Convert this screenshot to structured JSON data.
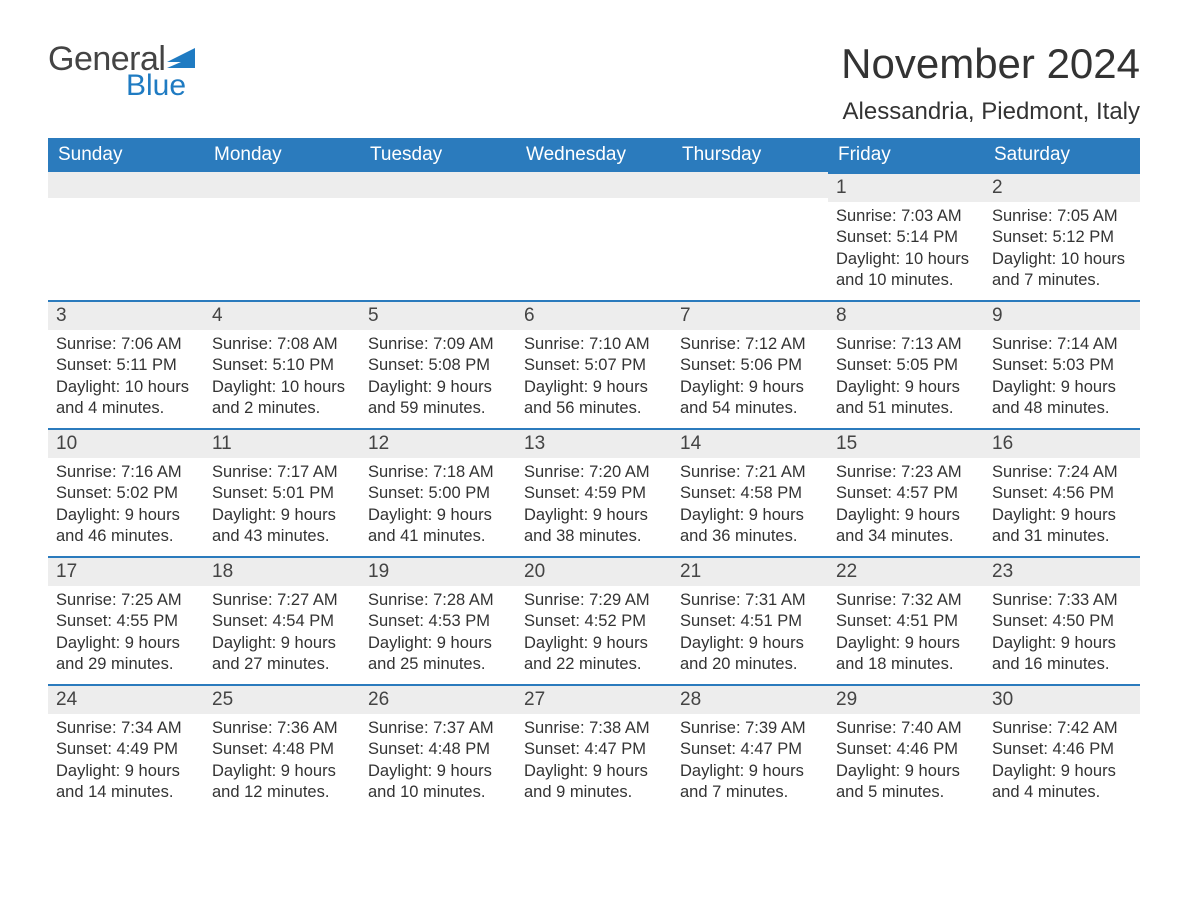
{
  "logo": {
    "general": "General",
    "blue": "Blue"
  },
  "title": "November 2024",
  "location": "Alessandria, Piedmont, Italy",
  "colors": {
    "header_bg": "#2b7bbd",
    "header_text": "#ffffff",
    "day_bar_bg": "#ededed",
    "day_bar_border": "#2b7bbd",
    "text": "#333333",
    "logo_gray": "#444444",
    "logo_blue": "#1f7bc2",
    "background": "#ffffff"
  },
  "weekdays": [
    "Sunday",
    "Monday",
    "Tuesday",
    "Wednesday",
    "Thursday",
    "Friday",
    "Saturday"
  ],
  "rows": [
    [
      null,
      null,
      null,
      null,
      null,
      {
        "n": "1",
        "sr": "Sunrise: 7:03 AM",
        "ss": "Sunset: 5:14 PM",
        "dl": "Daylight: 10 hours and 10 minutes."
      },
      {
        "n": "2",
        "sr": "Sunrise: 7:05 AM",
        "ss": "Sunset: 5:12 PM",
        "dl": "Daylight: 10 hours and 7 minutes."
      }
    ],
    [
      {
        "n": "3",
        "sr": "Sunrise: 7:06 AM",
        "ss": "Sunset: 5:11 PM",
        "dl": "Daylight: 10 hours and 4 minutes."
      },
      {
        "n": "4",
        "sr": "Sunrise: 7:08 AM",
        "ss": "Sunset: 5:10 PM",
        "dl": "Daylight: 10 hours and 2 minutes."
      },
      {
        "n": "5",
        "sr": "Sunrise: 7:09 AM",
        "ss": "Sunset: 5:08 PM",
        "dl": "Daylight: 9 hours and 59 minutes."
      },
      {
        "n": "6",
        "sr": "Sunrise: 7:10 AM",
        "ss": "Sunset: 5:07 PM",
        "dl": "Daylight: 9 hours and 56 minutes."
      },
      {
        "n": "7",
        "sr": "Sunrise: 7:12 AM",
        "ss": "Sunset: 5:06 PM",
        "dl": "Daylight: 9 hours and 54 minutes."
      },
      {
        "n": "8",
        "sr": "Sunrise: 7:13 AM",
        "ss": "Sunset: 5:05 PM",
        "dl": "Daylight: 9 hours and 51 minutes."
      },
      {
        "n": "9",
        "sr": "Sunrise: 7:14 AM",
        "ss": "Sunset: 5:03 PM",
        "dl": "Daylight: 9 hours and 48 minutes."
      }
    ],
    [
      {
        "n": "10",
        "sr": "Sunrise: 7:16 AM",
        "ss": "Sunset: 5:02 PM",
        "dl": "Daylight: 9 hours and 46 minutes."
      },
      {
        "n": "11",
        "sr": "Sunrise: 7:17 AM",
        "ss": "Sunset: 5:01 PM",
        "dl": "Daylight: 9 hours and 43 minutes."
      },
      {
        "n": "12",
        "sr": "Sunrise: 7:18 AM",
        "ss": "Sunset: 5:00 PM",
        "dl": "Daylight: 9 hours and 41 minutes."
      },
      {
        "n": "13",
        "sr": "Sunrise: 7:20 AM",
        "ss": "Sunset: 4:59 PM",
        "dl": "Daylight: 9 hours and 38 minutes."
      },
      {
        "n": "14",
        "sr": "Sunrise: 7:21 AM",
        "ss": "Sunset: 4:58 PM",
        "dl": "Daylight: 9 hours and 36 minutes."
      },
      {
        "n": "15",
        "sr": "Sunrise: 7:23 AM",
        "ss": "Sunset: 4:57 PM",
        "dl": "Daylight: 9 hours and 34 minutes."
      },
      {
        "n": "16",
        "sr": "Sunrise: 7:24 AM",
        "ss": "Sunset: 4:56 PM",
        "dl": "Daylight: 9 hours and 31 minutes."
      }
    ],
    [
      {
        "n": "17",
        "sr": "Sunrise: 7:25 AM",
        "ss": "Sunset: 4:55 PM",
        "dl": "Daylight: 9 hours and 29 minutes."
      },
      {
        "n": "18",
        "sr": "Sunrise: 7:27 AM",
        "ss": "Sunset: 4:54 PM",
        "dl": "Daylight: 9 hours and 27 minutes."
      },
      {
        "n": "19",
        "sr": "Sunrise: 7:28 AM",
        "ss": "Sunset: 4:53 PM",
        "dl": "Daylight: 9 hours and 25 minutes."
      },
      {
        "n": "20",
        "sr": "Sunrise: 7:29 AM",
        "ss": "Sunset: 4:52 PM",
        "dl": "Daylight: 9 hours and 22 minutes."
      },
      {
        "n": "21",
        "sr": "Sunrise: 7:31 AM",
        "ss": "Sunset: 4:51 PM",
        "dl": "Daylight: 9 hours and 20 minutes."
      },
      {
        "n": "22",
        "sr": "Sunrise: 7:32 AM",
        "ss": "Sunset: 4:51 PM",
        "dl": "Daylight: 9 hours and 18 minutes."
      },
      {
        "n": "23",
        "sr": "Sunrise: 7:33 AM",
        "ss": "Sunset: 4:50 PM",
        "dl": "Daylight: 9 hours and 16 minutes."
      }
    ],
    [
      {
        "n": "24",
        "sr": "Sunrise: 7:34 AM",
        "ss": "Sunset: 4:49 PM",
        "dl": "Daylight: 9 hours and 14 minutes."
      },
      {
        "n": "25",
        "sr": "Sunrise: 7:36 AM",
        "ss": "Sunset: 4:48 PM",
        "dl": "Daylight: 9 hours and 12 minutes."
      },
      {
        "n": "26",
        "sr": "Sunrise: 7:37 AM",
        "ss": "Sunset: 4:48 PM",
        "dl": "Daylight: 9 hours and 10 minutes."
      },
      {
        "n": "27",
        "sr": "Sunrise: 7:38 AM",
        "ss": "Sunset: 4:47 PM",
        "dl": "Daylight: 9 hours and 9 minutes."
      },
      {
        "n": "28",
        "sr": "Sunrise: 7:39 AM",
        "ss": "Sunset: 4:47 PM",
        "dl": "Daylight: 9 hours and 7 minutes."
      },
      {
        "n": "29",
        "sr": "Sunrise: 7:40 AM",
        "ss": "Sunset: 4:46 PM",
        "dl": "Daylight: 9 hours and 5 minutes."
      },
      {
        "n": "30",
        "sr": "Sunrise: 7:42 AM",
        "ss": "Sunset: 4:46 PM",
        "dl": "Daylight: 9 hours and 4 minutes."
      }
    ]
  ]
}
